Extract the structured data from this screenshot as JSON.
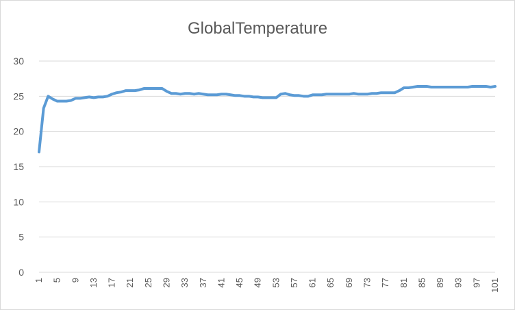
{
  "chart_data": {
    "type": "line",
    "title": "GlobalTemperature",
    "xlabel": "",
    "ylabel": "",
    "ylim": [
      0,
      30
    ],
    "yticks": [
      0,
      5,
      10,
      15,
      20,
      25,
      30
    ],
    "xlim": [
      1,
      101
    ],
    "xtick_labels": [
      "1",
      "5",
      "9",
      "13",
      "17",
      "21",
      "25",
      "29",
      "33",
      "37",
      "41",
      "45",
      "49",
      "53",
      "57",
      "61",
      "65",
      "69",
      "73",
      "77",
      "81",
      "85",
      "89",
      "93",
      "97",
      "101"
    ],
    "grid": "horizontal",
    "legend": "none",
    "series_color": "#5b9bd5",
    "gridline_color": "#d9d9d9",
    "series": [
      {
        "values": [
          17.1,
          23.3,
          25.0,
          24.6,
          24.3,
          24.3,
          24.3,
          24.4,
          24.7,
          24.7,
          24.8,
          24.9,
          24.8,
          24.9,
          24.9,
          25.0,
          25.3,
          25.5,
          25.6,
          25.8,
          25.8,
          25.8,
          25.9,
          26.1,
          26.1,
          26.1,
          26.1,
          26.1,
          25.7,
          25.4,
          25.4,
          25.3,
          25.4,
          25.4,
          25.3,
          25.4,
          25.3,
          25.2,
          25.2,
          25.2,
          25.3,
          25.3,
          25.2,
          25.1,
          25.1,
          25.0,
          25.0,
          24.9,
          24.9,
          24.8,
          24.8,
          24.8,
          24.8,
          25.3,
          25.4,
          25.2,
          25.1,
          25.1,
          25.0,
          25.0,
          25.2,
          25.2,
          25.2,
          25.3,
          25.3,
          25.3,
          25.3,
          25.3,
          25.3,
          25.4,
          25.3,
          25.3,
          25.3,
          25.4,
          25.4,
          25.5,
          25.5,
          25.5,
          25.5,
          25.8,
          26.2,
          26.2,
          26.3,
          26.4,
          26.4,
          26.4,
          26.3,
          26.3,
          26.3,
          26.3,
          26.3,
          26.3,
          26.3,
          26.3,
          26.3,
          26.4,
          26.4,
          26.4,
          26.4,
          26.3,
          26.4
        ]
      }
    ]
  }
}
